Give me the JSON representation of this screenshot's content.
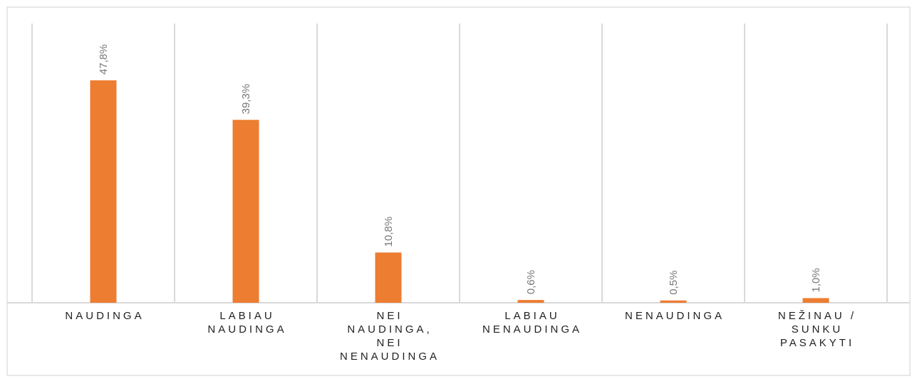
{
  "chart_data": {
    "type": "bar",
    "categories": [
      "NAUDINGA",
      "LABIAU\nNAUDINGA",
      "NEI\nNAUDINGA,\nNEI\nNENAUDINGA",
      "LABIAU\nNENAUDINGA",
      "NENAUDINGA",
      "NEŽINAU /\nSUNKU\nPASAKYTI"
    ],
    "values": [
      47.8,
      39.3,
      10.8,
      0.6,
      0.5,
      1.0
    ],
    "value_labels": [
      "47,8%",
      "39,3%",
      "10,8%",
      "0,6%",
      "0,5%",
      "1,0%"
    ],
    "color": "#ed7d31",
    "ylim": [
      0,
      60
    ]
  }
}
